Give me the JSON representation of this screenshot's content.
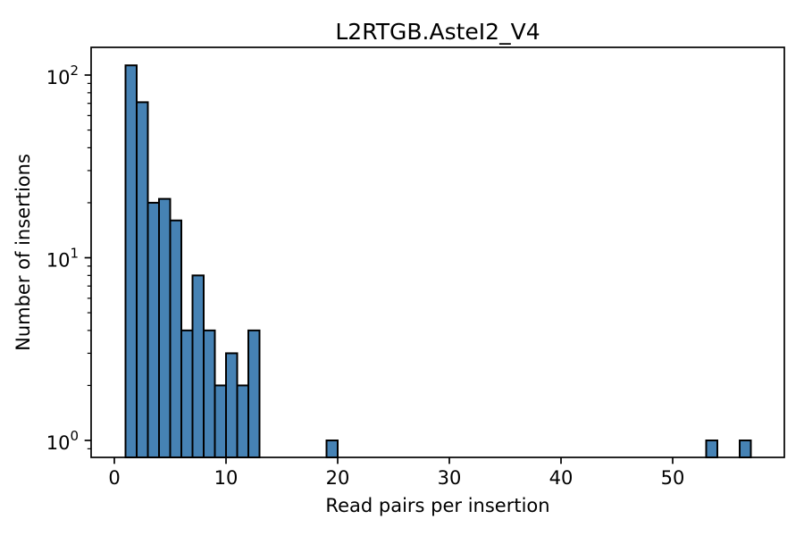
{
  "chart_data": {
    "type": "bar",
    "subtype": "histogram",
    "title": "L2RTGB.AsteI2_V4",
    "xlabel": "Read pairs per insertion",
    "ylabel": "Number of insertions",
    "yscale": "log",
    "grid": false,
    "legend": null,
    "xlim": [
      -2.08,
      60.0
    ],
    "ylim": [
      0.8075,
      141.8
    ],
    "x_ticks": [
      0,
      10,
      20,
      30,
      40,
      50
    ],
    "y_major_ticks": [
      {
        "value": 1,
        "base": "10",
        "exp": "0"
      },
      {
        "value": 10,
        "base": "10",
        "exp": "1"
      },
      {
        "value": 100,
        "base": "10",
        "exp": "2"
      }
    ],
    "y_minor_subs": [
      2,
      3,
      4,
      5,
      6,
      7,
      8,
      9
    ],
    "bin_width": 1,
    "bins": [
      {
        "left": 1,
        "count": 113
      },
      {
        "left": 2,
        "count": 71
      },
      {
        "left": 3,
        "count": 20
      },
      {
        "left": 4,
        "count": 21
      },
      {
        "left": 5,
        "count": 16
      },
      {
        "left": 6,
        "count": 4
      },
      {
        "left": 7,
        "count": 8
      },
      {
        "left": 8,
        "count": 4
      },
      {
        "left": 9,
        "count": 2
      },
      {
        "left": 10,
        "count": 3
      },
      {
        "left": 11,
        "count": 2
      },
      {
        "left": 12,
        "count": 4
      },
      {
        "left": 19,
        "count": 1
      },
      {
        "left": 53,
        "count": 1
      },
      {
        "left": 56,
        "count": 1
      }
    ],
    "colors": {
      "bar_fill": "#4682b4",
      "bar_edge": "#000000",
      "axis": "#000000",
      "text": "#000000",
      "background": "#ffffff"
    }
  }
}
